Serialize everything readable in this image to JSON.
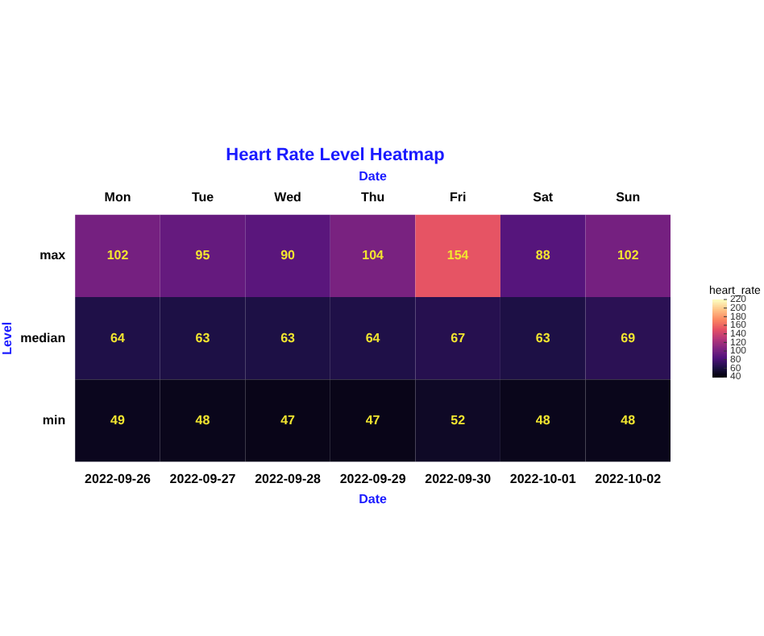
{
  "chart_data": {
    "type": "heatmap",
    "title": "Heart Rate Level Heatmap",
    "xlabel": "Date",
    "x2label": "Date",
    "ylabel": "Level",
    "legend_title": "heart_rate",
    "categories": [
      "2022-09-26",
      "2022-09-27",
      "2022-09-28",
      "2022-09-29",
      "2022-09-30",
      "2022-10-01",
      "2022-10-02"
    ],
    "annotations": [
      "Mon",
      "Tue",
      "Wed",
      "Thu",
      "Fri",
      "Sat",
      "Sun"
    ],
    "y_categories": [
      "max",
      "median",
      "min"
    ],
    "cells": [
      [
        102,
        95,
        90,
        104,
        154,
        88,
        102
      ],
      [
        64,
        63,
        63,
        64,
        67,
        63,
        69
      ],
      [
        49,
        48,
        47,
        47,
        52,
        48,
        48
      ]
    ],
    "clim": [
      40,
      220
    ],
    "cticks": [
      40,
      60,
      80,
      100,
      120,
      140,
      160,
      180,
      200,
      220
    ],
    "data_labels": true,
    "grid": false
  }
}
